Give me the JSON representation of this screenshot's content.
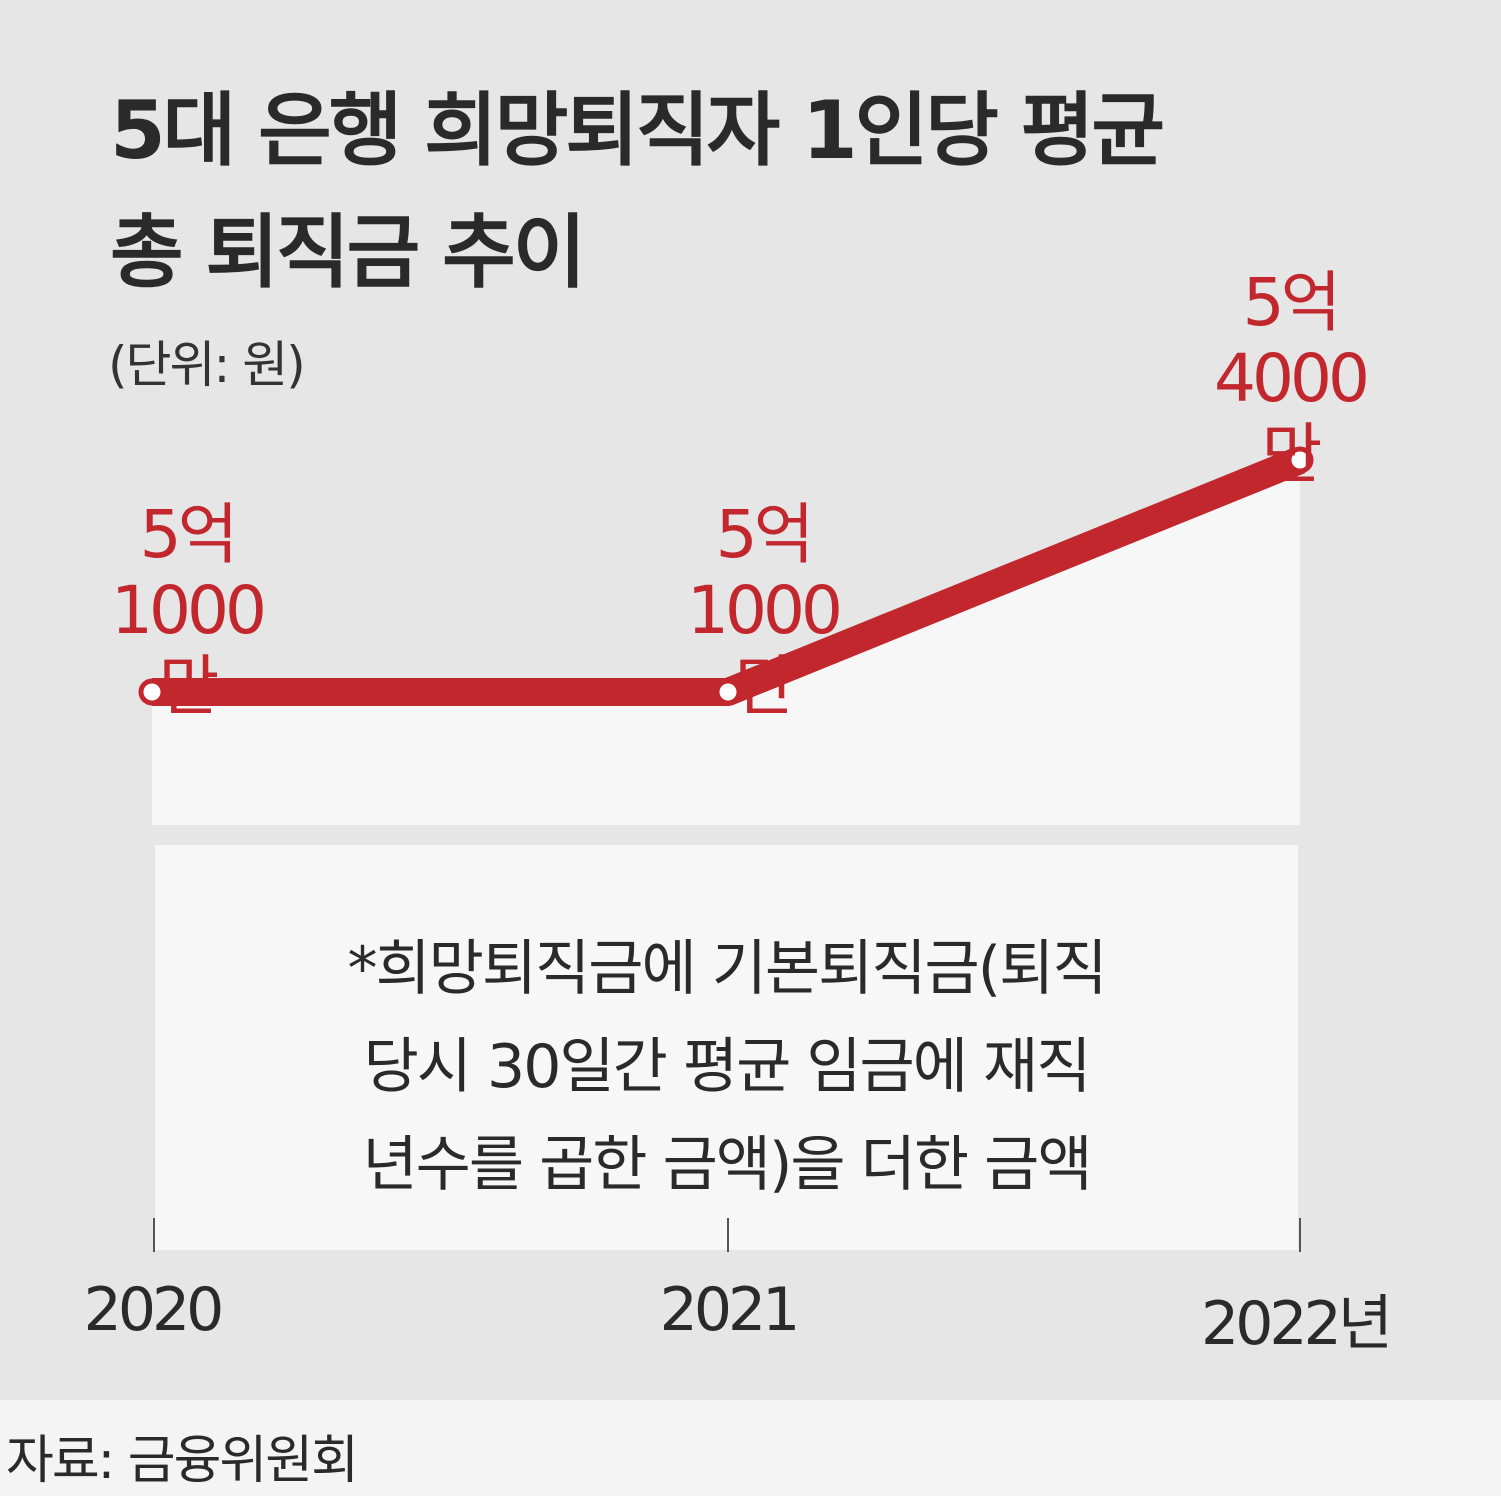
{
  "chart_data": {
    "type": "line",
    "title": "5대 은행 희망퇴직자 1인당 평균 총 퇴직금 추이",
    "subtitle": "(단위: 원)",
    "categories": [
      "2020",
      "2021",
      "2022년"
    ],
    "values": [
      510000000,
      510000000,
      540000000
    ],
    "value_labels": [
      "5억 1000만",
      "5억 1000만",
      "5억 4000만"
    ],
    "color": "#c1272d",
    "area": true,
    "note": [
      "*희망퇴직금에 기본퇴직금(퇴직",
      "당시 30일간 평균 임금에 재직",
      "년수를 곱한 금액)을 더한 금액"
    ],
    "source": "자료: 금융위원회"
  }
}
